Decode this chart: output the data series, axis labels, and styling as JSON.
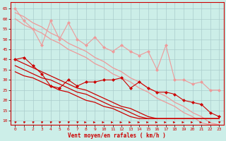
{
  "bg_color": "#cceee8",
  "grid_color": "#aacccc",
  "xlabel": "Vent moyen/en rafales ( km/h )",
  "xlim": [
    -0.5,
    23.5
  ],
  "ylim": [
    8,
    68
  ],
  "yticks": [
    10,
    15,
    20,
    25,
    30,
    35,
    40,
    45,
    50,
    55,
    60,
    65
  ],
  "xticks": [
    0,
    1,
    2,
    3,
    4,
    5,
    6,
    7,
    8,
    9,
    10,
    11,
    12,
    13,
    14,
    15,
    16,
    17,
    18,
    19,
    20,
    21,
    22,
    23
  ],
  "x": [
    0,
    1,
    2,
    3,
    4,
    5,
    6,
    7,
    8,
    9,
    10,
    11,
    12,
    13,
    14,
    15,
    16,
    17,
    18,
    19,
    20,
    21,
    22,
    23
  ],
  "line_upper_scatter": [
    65,
    59,
    55,
    47,
    59,
    50,
    58,
    50,
    47,
    51,
    46,
    44,
    47,
    44,
    42,
    44,
    35,
    47,
    30,
    30,
    28,
    29,
    25,
    25
  ],
  "line_upper_trend1": [
    63,
    61,
    58,
    56,
    53,
    51,
    48,
    46,
    44,
    41,
    39,
    36,
    34,
    31,
    29,
    26,
    24,
    22,
    19,
    17,
    14,
    12,
    9,
    8
  ],
  "line_upper_trend2": [
    60,
    57,
    55,
    53,
    50,
    48,
    45,
    43,
    41,
    38,
    36,
    33,
    31,
    29,
    26,
    24,
    21,
    19,
    17,
    14,
    12,
    9,
    8,
    8
  ],
  "line_lower_scatter": [
    40,
    41,
    37,
    33,
    27,
    26,
    30,
    27,
    29,
    29,
    30,
    30,
    31,
    26,
    29,
    26,
    24,
    24,
    23,
    20,
    19,
    18,
    14,
    12
  ],
  "line_lower_trend1": [
    40,
    38,
    36,
    34,
    32,
    30,
    28,
    26,
    25,
    23,
    21,
    19,
    17,
    16,
    14,
    12,
    11,
    11,
    11,
    11,
    11,
    11,
    11,
    11
  ],
  "line_lower_trend2": [
    37,
    35,
    33,
    31,
    30,
    28,
    26,
    24,
    23,
    21,
    19,
    17,
    16,
    14,
    12,
    11,
    11,
    11,
    11,
    11,
    11,
    11,
    11,
    11
  ],
  "line_lower_trend3": [
    34,
    32,
    31,
    29,
    27,
    25,
    24,
    22,
    20,
    19,
    17,
    16,
    14,
    12,
    11,
    11,
    11,
    11,
    11,
    11,
    11,
    11,
    11,
    11
  ],
  "color_light": "#ee9999",
  "color_dark": "#cc0000",
  "marker": "D",
  "marker_size": 2.0,
  "arrow_angles": [
    45,
    45,
    45,
    45,
    45,
    45,
    45,
    45,
    0,
    0,
    0,
    0,
    0,
    0,
    0,
    0,
    0,
    0,
    0,
    0,
    0,
    0,
    0,
    45
  ]
}
